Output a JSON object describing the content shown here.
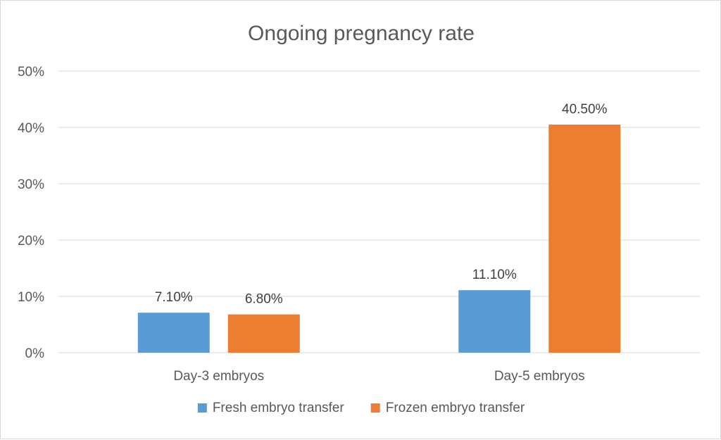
{
  "chart_data": {
    "type": "bar",
    "title": "Ongoing pregnancy rate",
    "categories": [
      "Day-3 embryos",
      "Day-5 embryos"
    ],
    "series": [
      {
        "name": "Fresh embryo transfer",
        "values": [
          7.1,
          11.1
        ],
        "labels": [
          "7.10%",
          "11.10%"
        ],
        "color": "#5b9bd5"
      },
      {
        "name": "Frozen embryo transfer",
        "values": [
          6.8,
          40.5
        ],
        "labels": [
          "6.80%",
          "40.50%"
        ],
        "color": "#ed7d31"
      }
    ],
    "y_ticks": [
      "0%",
      "10%",
      "20%",
      "30%",
      "40%",
      "50%"
    ],
    "ylim": [
      0,
      50
    ],
    "grid": true,
    "legend_position": "bottom"
  }
}
